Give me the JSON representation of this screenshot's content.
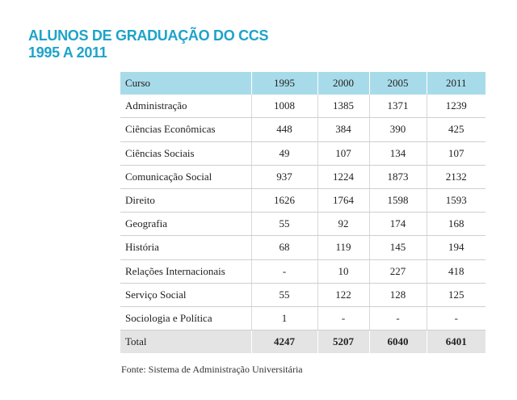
{
  "header": {
    "title": [
      "ALUNOS DE GRADUAÇÃO DO CCS",
      "1995 A 2011"
    ]
  },
  "table": {
    "columns": [
      "Curso",
      "1995",
      "2000",
      "2005",
      "2011"
    ],
    "rows": [
      [
        "Administração",
        1008,
        1385,
        1371,
        1239
      ],
      [
        "Ciências Econômicas",
        448,
        384,
        390,
        425
      ],
      [
        "Ciências Sociais",
        49,
        107,
        134,
        107
      ],
      [
        "Comunicação Social",
        937,
        1224,
        1873,
        2132
      ],
      [
        "Direito",
        1626,
        1764,
        1598,
        1593
      ],
      [
        "Geografia",
        55,
        92,
        174,
        168
      ],
      [
        "História",
        68,
        119,
        145,
        194
      ],
      [
        "Relações Internacionais",
        "-",
        10,
        227,
        418
      ],
      [
        "Serviço Social",
        55,
        122,
        128,
        125
      ],
      [
        "Sociologia e Política",
        1,
        "-",
        "-",
        "-"
      ]
    ],
    "total": [
      "Total",
      4247,
      5207,
      6040,
      6401
    ]
  },
  "source": "Fonte: Sistema de Administração Universitária"
}
